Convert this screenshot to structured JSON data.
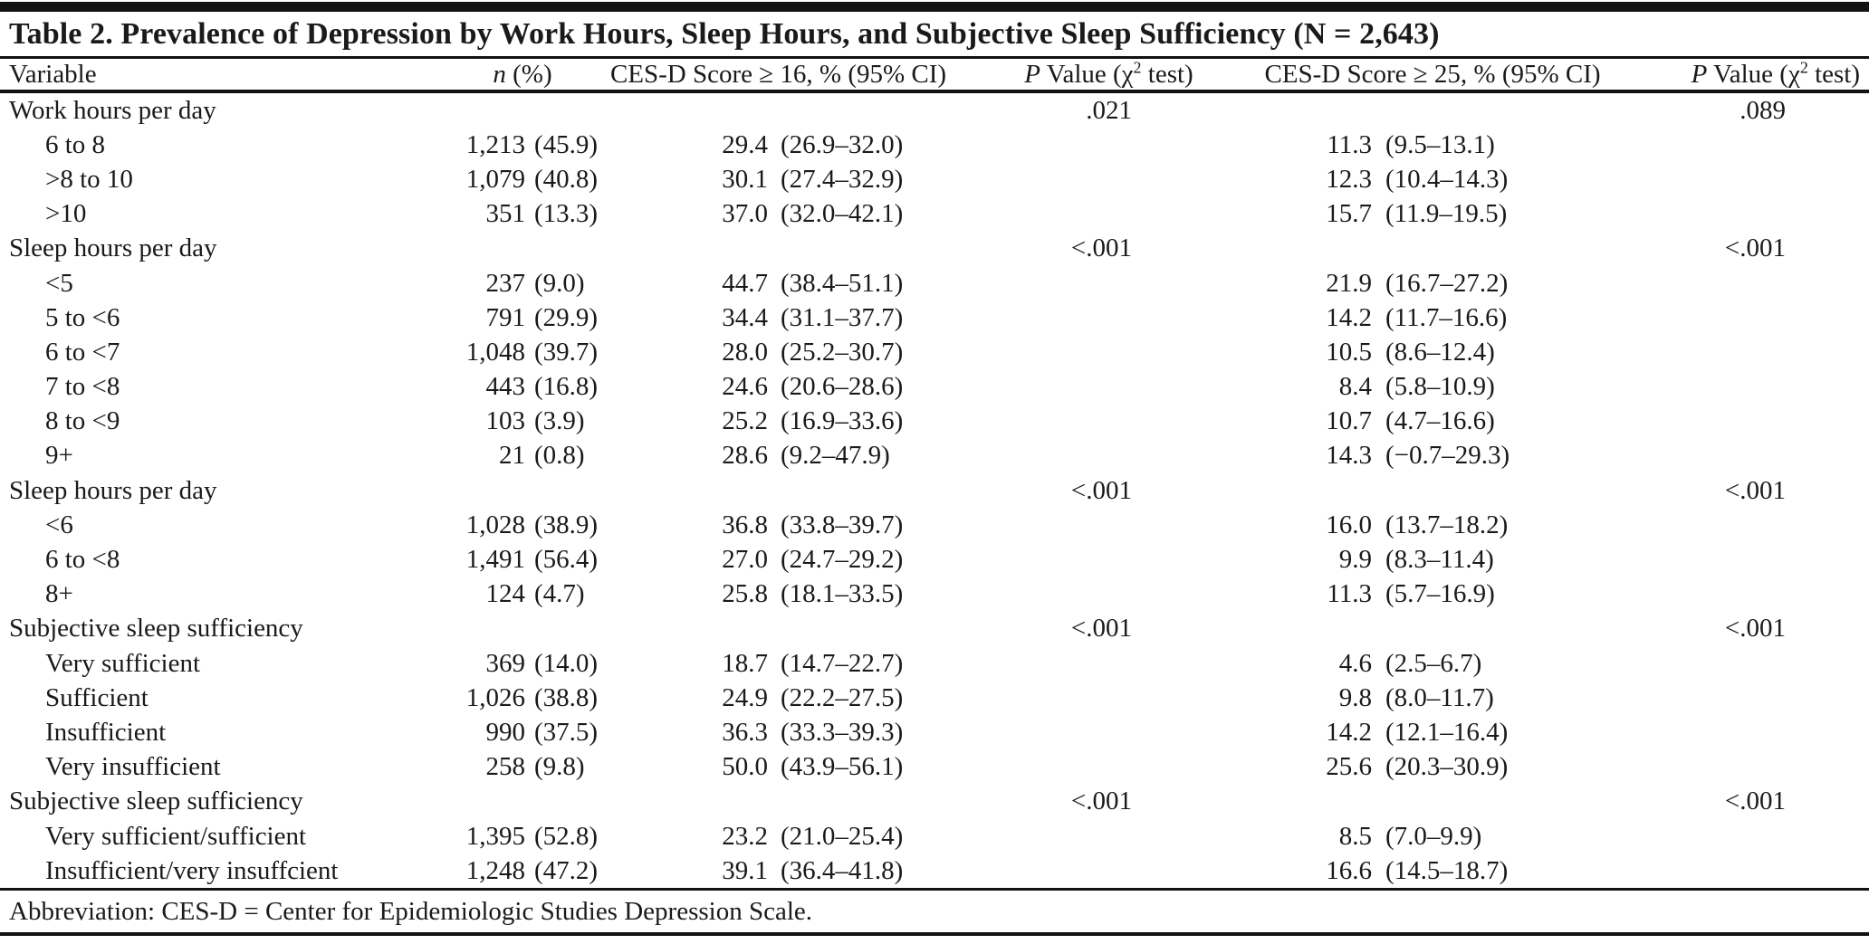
{
  "table": {
    "title": "Table 2. Prevalence of Depression by Work Hours, Sleep Hours, and Subjective Sleep Sufficiency (N = 2,643)",
    "headers": {
      "variable": "Variable",
      "n_italic": "n",
      "n_rest": " (%)",
      "ces16": "CES-D Score ≥ 16, % (95% CI)",
      "ces25": "CES-D Score ≥ 25, % (95% CI)",
      "p_italic": "P",
      "p_mid": " Value (χ",
      "p_sup": "2",
      "p_end": " test)"
    },
    "rows": [
      {
        "type": "section",
        "label": "Work hours per day",
        "p16": ".021",
        "p25": ".089"
      },
      {
        "type": "item",
        "label": "6 to 8",
        "n": "1,213",
        "pct": "(45.9)",
        "v16": "29.4",
        "ci16": "(26.9–32.0)",
        "v25": "11.3",
        "ci25": "(9.5–13.1)"
      },
      {
        "type": "item",
        "label": ">8 to 10",
        "n": "1,079",
        "pct": "(40.8)",
        "v16": "30.1",
        "ci16": "(27.4–32.9)",
        "v25": "12.3",
        "ci25": "(10.4–14.3)"
      },
      {
        "type": "item",
        "label": ">10",
        "n": "351",
        "pct": "(13.3)",
        "v16": "37.0",
        "ci16": "(32.0–42.1)",
        "v25": "15.7",
        "ci25": "(11.9–19.5)"
      },
      {
        "type": "section",
        "label": "Sleep hours per day",
        "p16": "<.001",
        "p25": "<.001"
      },
      {
        "type": "item",
        "label": "<5",
        "n": "237",
        "pct": "(9.0)",
        "v16": "44.7",
        "ci16": "(38.4–51.1)",
        "v25": "21.9",
        "ci25": "(16.7–27.2)"
      },
      {
        "type": "item",
        "label": "5 to <6",
        "n": "791",
        "pct": "(29.9)",
        "v16": "34.4",
        "ci16": "(31.1–37.7)",
        "v25": "14.2",
        "ci25": "(11.7–16.6)"
      },
      {
        "type": "item",
        "label": "6 to <7",
        "n": "1,048",
        "pct": "(39.7)",
        "v16": "28.0",
        "ci16": "(25.2–30.7)",
        "v25": "10.5",
        "ci25": "(8.6–12.4)"
      },
      {
        "type": "item",
        "label": "7 to <8",
        "n": "443",
        "pct": "(16.8)",
        "v16": "24.6",
        "ci16": "(20.6–28.6)",
        "v25": "8.4",
        "ci25": "(5.8–10.9)"
      },
      {
        "type": "item",
        "label": "8 to <9",
        "n": "103",
        "pct": "(3.9)",
        "v16": "25.2",
        "ci16": "(16.9–33.6)",
        "v25": "10.7",
        "ci25": "(4.7–16.6)"
      },
      {
        "type": "item",
        "label": "9+",
        "n": "21",
        "pct": "(0.8)",
        "v16": "28.6",
        "ci16": "(9.2–47.9)",
        "v25": "14.3",
        "ci25": "(−0.7–29.3)"
      },
      {
        "type": "section",
        "label": "Sleep hours per day",
        "p16": "<.001",
        "p25": "<.001"
      },
      {
        "type": "item",
        "label": "<6",
        "n": "1,028",
        "pct": "(38.9)",
        "v16": "36.8",
        "ci16": "(33.8–39.7)",
        "v25": "16.0",
        "ci25": "(13.7–18.2)"
      },
      {
        "type": "item",
        "label": "6 to <8",
        "n": "1,491",
        "pct": "(56.4)",
        "v16": "27.0",
        "ci16": "(24.7–29.2)",
        "v25": "9.9",
        "ci25": "(8.3–11.4)"
      },
      {
        "type": "item",
        "label": "8+",
        "n": "124",
        "pct": "(4.7)",
        "v16": "25.8",
        "ci16": "(18.1–33.5)",
        "v25": "11.3",
        "ci25": "(5.7–16.9)"
      },
      {
        "type": "section",
        "label": "Subjective sleep sufficiency",
        "p16": "<.001",
        "p25": "<.001"
      },
      {
        "type": "item",
        "label": "Very sufficient",
        "n": "369",
        "pct": "(14.0)",
        "v16": "18.7",
        "ci16": "(14.7–22.7)",
        "v25": "4.6",
        "ci25": "(2.5–6.7)"
      },
      {
        "type": "item",
        "label": "Sufficient",
        "n": "1,026",
        "pct": "(38.8)",
        "v16": "24.9",
        "ci16": "(22.2–27.5)",
        "v25": "9.8",
        "ci25": "(8.0–11.7)"
      },
      {
        "type": "item",
        "label": "Insufficient",
        "n": "990",
        "pct": "(37.5)",
        "v16": "36.3",
        "ci16": "(33.3–39.3)",
        "v25": "14.2",
        "ci25": "(12.1–16.4)"
      },
      {
        "type": "item",
        "label": "Very insufficient",
        "n": "258",
        "pct": "(9.8)",
        "v16": "50.0",
        "ci16": "(43.9–56.1)",
        "v25": "25.6",
        "ci25": "(20.3–30.9)"
      },
      {
        "type": "section",
        "label": "Subjective sleep sufficiency",
        "p16": "<.001",
        "p25": "<.001"
      },
      {
        "type": "item",
        "label": "Very sufficient/sufficient",
        "n": "1,395",
        "pct": "(52.8)",
        "v16": "23.2",
        "ci16": "(21.0–25.4)",
        "v25": "8.5",
        "ci25": "(7.0–9.9)"
      },
      {
        "type": "item",
        "label": "Insufficient/very insuffcient",
        "n": "1,248",
        "pct": "(47.2)",
        "v16": "39.1",
        "ci16": "(36.4–41.8)",
        "v25": "16.6",
        "ci25": "(14.5–18.7)"
      }
    ],
    "footnote": "Abbreviation: CES-D = Center for Epidemiologic Studies Depression Scale."
  }
}
